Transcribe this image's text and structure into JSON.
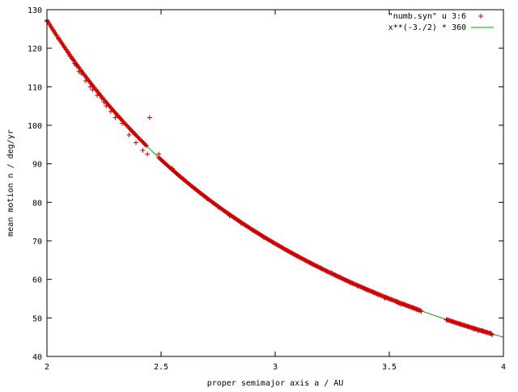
{
  "chart_data": {
    "type": "scatter",
    "xlabel": "proper semimajor axis a / AU",
    "ylabel": "mean motion n / deg/yr",
    "xlim": [
      2,
      4
    ],
    "ylim": [
      40,
      130
    ],
    "xticks": [
      2,
      2.5,
      3,
      3.5,
      4
    ],
    "xtick_labels": [
      "2",
      "2.5",
      "3",
      "3.5",
      "4"
    ],
    "yticks": [
      40,
      50,
      60,
      70,
      80,
      90,
      100,
      110,
      120,
      130
    ],
    "ytick_labels": [
      "40",
      "50",
      "60",
      "70",
      "80",
      "90",
      "100",
      "110",
      "120",
      "130"
    ],
    "grid": false,
    "legend_position": "top-right",
    "colors": {
      "points": "#cc0000",
      "curve": "#00a000",
      "axes": "#000000"
    },
    "series": [
      {
        "name": "\"numb.syn\" u 3:6",
        "kind": "points",
        "marker": "plus",
        "x": [
          2.0,
          2.04,
          2.05,
          2.1,
          2.11,
          2.12,
          2.13,
          2.14,
          2.15,
          2.17,
          2.19,
          2.2,
          2.22,
          2.24,
          2.25,
          2.26,
          2.28,
          2.3,
          2.33,
          2.36,
          2.39,
          2.42,
          2.44,
          2.45,
          2.49,
          2.55,
          2.6,
          2.65,
          2.7,
          2.75,
          2.8,
          2.85,
          2.9,
          2.95,
          3.0,
          3.05,
          3.1,
          3.15,
          3.2,
          3.25,
          3.26,
          3.28,
          3.33,
          3.36,
          3.4,
          3.45,
          3.48,
          3.5,
          3.53,
          3.54,
          3.55,
          3.62,
          3.64,
          3.75,
          3.81,
          3.87,
          3.89,
          3.91,
          3.93,
          3.94,
          3.95
        ],
        "y": [
          127.0,
          123.5,
          122.5,
          118.0,
          117.3,
          116.0,
          115.4,
          114.0,
          113.5,
          111.5,
          110.0,
          109.2,
          107.8,
          107.0,
          106.0,
          105.0,
          103.6,
          102.0,
          100.5,
          97.5,
          95.5,
          93.5,
          92.5,
          102.0,
          92.5,
          88.8,
          86.0,
          83.5,
          81.0,
          78.8,
          76.5,
          74.6,
          72.8,
          70.8,
          69.3,
          67.6,
          66.0,
          64.4,
          63.0,
          61.6,
          61.2,
          60.7,
          59.0,
          58.3,
          57.3,
          56.0,
          55.1,
          54.9,
          54.2,
          53.8,
          53.5,
          52.2,
          51.7,
          49.5,
          48.4,
          47.1,
          46.7,
          46.6,
          46.2,
          46.0,
          45.6
        ]
      },
      {
        "name": "x**(-3./2) * 360",
        "kind": "line",
        "function": "x**(-1.5) * 360"
      }
    ]
  }
}
